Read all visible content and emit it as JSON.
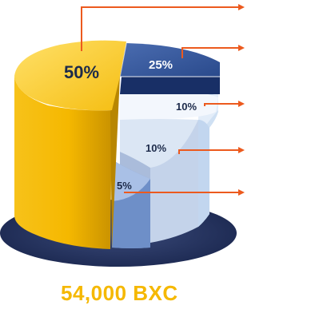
{
  "chart_data": {
    "type": "pie",
    "style": "3d-exploded-cylinder",
    "title": "",
    "slices": [
      {
        "label": "50%",
        "value": 50,
        "color": "#f5b800"
      },
      {
        "label": "25%",
        "value": 25,
        "color": "#2c4a8c"
      },
      {
        "label": "10%",
        "value": 10,
        "color": "#d6e4f5"
      },
      {
        "label": "10%",
        "value": 10,
        "color": "#aabbd8"
      },
      {
        "label": "5%",
        "value": 5,
        "color": "#7f9fd3"
      }
    ],
    "total_label": "54,000 BXC"
  },
  "colors": {
    "callout_line": "#ec5a1e",
    "shadow": "#2d3d6b"
  }
}
